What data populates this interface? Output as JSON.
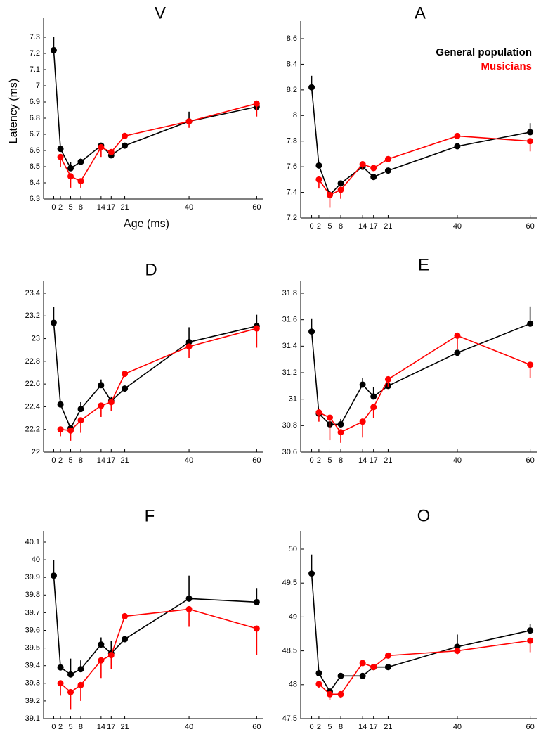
{
  "chart_data": [
    {
      "type": "line",
      "title": "V",
      "ylabel": "Latency (ms)",
      "xlabel": "Age (ms)",
      "x": [
        0,
        2,
        5,
        8,
        14,
        17,
        21,
        40,
        60
      ],
      "xlim": [
        -3,
        62
      ],
      "xticks": [
        0,
        2,
        5,
        8,
        14,
        17,
        21,
        40,
        60
      ],
      "ylim": [
        6.3,
        7.3
      ],
      "yticks": [
        6.3,
        6.4,
        6.5,
        6.6,
        6.7,
        6.8,
        6.9,
        7,
        7.1,
        7.2,
        7.3
      ],
      "series": [
        {
          "color": "#000000",
          "error_direction": "up",
          "values": [
            7.22,
            6.61,
            6.49,
            6.53,
            6.63,
            6.57,
            6.63,
            6.78,
            6.87
          ],
          "errors": [
            0.08,
            0.01,
            0.04,
            0.02,
            0.01,
            0.02,
            0.01,
            0.06,
            0.02
          ]
        },
        {
          "color": "#ff0000",
          "error_direction": "down",
          "values": [
            null,
            6.56,
            6.44,
            6.41,
            6.62,
            6.59,
            6.69,
            6.78,
            6.89
          ],
          "errors": [
            null,
            0.06,
            0.07,
            0.04,
            0.06,
            0.01,
            0.01,
            0.04,
            0.08
          ]
        }
      ]
    },
    {
      "type": "line",
      "title": "A",
      "legend": "upper right",
      "x": [
        0,
        2,
        5,
        8,
        14,
        17,
        21,
        40,
        60
      ],
      "xlim": [
        -3,
        62
      ],
      "xticks": [
        0,
        2,
        5,
        8,
        14,
        17,
        21,
        40,
        60
      ],
      "ylim": [
        7.2,
        8.6
      ],
      "yticks": [
        7.2,
        7.4,
        7.6,
        7.8,
        8,
        8.2,
        8.4,
        8.6
      ],
      "series": [
        {
          "name": "General population",
          "color": "#000000",
          "error_direction": "up",
          "values": [
            8.22,
            7.61,
            7.38,
            7.47,
            7.6,
            7.52,
            7.57,
            7.76,
            7.87
          ],
          "errors": [
            0.09,
            0.01,
            0.03,
            0.02,
            0.03,
            0.01,
            0.01,
            0.01,
            0.07
          ]
        },
        {
          "name": "Musicians",
          "color": "#ff0000",
          "error_direction": "down",
          "values": [
            null,
            7.5,
            7.38,
            7.42,
            7.62,
            7.59,
            7.66,
            7.84,
            7.8
          ],
          "errors": [
            null,
            0.07,
            0.1,
            0.07,
            0.04,
            0.02,
            0.01,
            0.01,
            0.08
          ]
        }
      ]
    },
    {
      "type": "line",
      "title": "D",
      "x": [
        0,
        2,
        5,
        8,
        14,
        17,
        21,
        40,
        60
      ],
      "xlim": [
        -3,
        62
      ],
      "xticks": [
        0,
        2,
        5,
        8,
        14,
        17,
        21,
        40,
        60
      ],
      "ylim": [
        22,
        23.4
      ],
      "yticks": [
        22,
        22.2,
        22.4,
        22.6,
        22.8,
        23,
        23.2,
        23.4
      ],
      "series": [
        {
          "color": "#000000",
          "error_direction": "up",
          "values": [
            23.14,
            22.42,
            22.21,
            22.38,
            22.59,
            22.45,
            22.56,
            22.97,
            23.11
          ],
          "errors": [
            0.14,
            0.01,
            0.02,
            0.06,
            0.05,
            0.04,
            0.01,
            0.13,
            0.1
          ]
        },
        {
          "color": "#ff0000",
          "error_direction": "down",
          "values": [
            null,
            22.2,
            22.19,
            22.28,
            22.41,
            22.44,
            22.69,
            22.93,
            23.09
          ],
          "errors": [
            null,
            0.06,
            0.09,
            0.11,
            0.1,
            0.08,
            0.01,
            0.1,
            0.17
          ]
        }
      ]
    },
    {
      "type": "line",
      "title": "E",
      "x": [
        0,
        2,
        5,
        8,
        14,
        17,
        21,
        40,
        60
      ],
      "xlim": [
        -3,
        62
      ],
      "xticks": [
        0,
        2,
        5,
        8,
        14,
        17,
        21,
        40,
        60
      ],
      "ylim": [
        30.6,
        31.8
      ],
      "yticks": [
        30.6,
        30.8,
        31,
        31.2,
        31.4,
        31.6,
        31.8
      ],
      "series": [
        {
          "color": "#000000",
          "error_direction": "up",
          "values": [
            31.51,
            30.89,
            30.81,
            30.81,
            31.11,
            31.02,
            31.1,
            31.35,
            31.57
          ],
          "errors": [
            0.1,
            0.01,
            0.02,
            0.04,
            0.05,
            0.07,
            0.01,
            0.01,
            0.13
          ]
        },
        {
          "color": "#ff0000",
          "error_direction": "down",
          "values": [
            null,
            30.9,
            30.86,
            30.75,
            30.83,
            30.94,
            31.15,
            31.48,
            31.26
          ],
          "errors": [
            null,
            0.07,
            0.17,
            0.08,
            0.12,
            0.08,
            0.06,
            0.1,
            0.1
          ]
        }
      ]
    },
    {
      "type": "line",
      "title": "F",
      "x": [
        0,
        2,
        5,
        8,
        14,
        17,
        21,
        40,
        60
      ],
      "xlim": [
        -3,
        62
      ],
      "xticks": [
        0,
        2,
        5,
        8,
        14,
        17,
        21,
        40,
        60
      ],
      "ylim": [
        39.1,
        40.1
      ],
      "yticks": [
        39.1,
        39.2,
        39.3,
        39.4,
        39.5,
        39.6,
        39.7,
        39.8,
        39.9,
        40,
        40.1
      ],
      "series": [
        {
          "color": "#000000",
          "error_direction": "up",
          "values": [
            39.91,
            39.39,
            39.35,
            39.38,
            39.52,
            39.47,
            39.55,
            39.78,
            39.76
          ],
          "errors": [
            0.09,
            0.01,
            0.09,
            0.05,
            0.04,
            0.07,
            0.01,
            0.13,
            0.08
          ]
        },
        {
          "color": "#ff0000",
          "error_direction": "down",
          "values": [
            null,
            39.3,
            39.25,
            39.29,
            39.43,
            39.46,
            39.68,
            39.72,
            39.61
          ],
          "errors": [
            null,
            0.07,
            0.1,
            0.09,
            0.1,
            0.08,
            0.01,
            0.1,
            0.15
          ]
        }
      ]
    },
    {
      "type": "line",
      "title": "O",
      "x": [
        0,
        2,
        5,
        8,
        14,
        17,
        21,
        40,
        60
      ],
      "xlim": [
        -3,
        62
      ],
      "xticks": [
        0,
        2,
        5,
        8,
        14,
        17,
        21,
        40,
        60
      ],
      "ylim": [
        47.5,
        50
      ],
      "yticks": [
        47.5,
        48,
        48.5,
        49,
        49.5,
        50
      ],
      "series": [
        {
          "color": "#000000",
          "error_direction": "up",
          "values": [
            49.64,
            48.17,
            47.9,
            48.13,
            48.13,
            48.26,
            48.26,
            48.56,
            48.8
          ],
          "errors": [
            0.28,
            0.01,
            0.02,
            0.01,
            0.01,
            0.02,
            0.01,
            0.18,
            0.1
          ]
        },
        {
          "color": "#ff0000",
          "error_direction": "down",
          "values": [
            null,
            48.01,
            47.86,
            47.86,
            48.32,
            48.26,
            48.43,
            48.5,
            48.65
          ],
          "errors": [
            null,
            0.06,
            0.08,
            0.06,
            0.02,
            0.04,
            0.04,
            0.05,
            0.17
          ]
        }
      ]
    }
  ]
}
